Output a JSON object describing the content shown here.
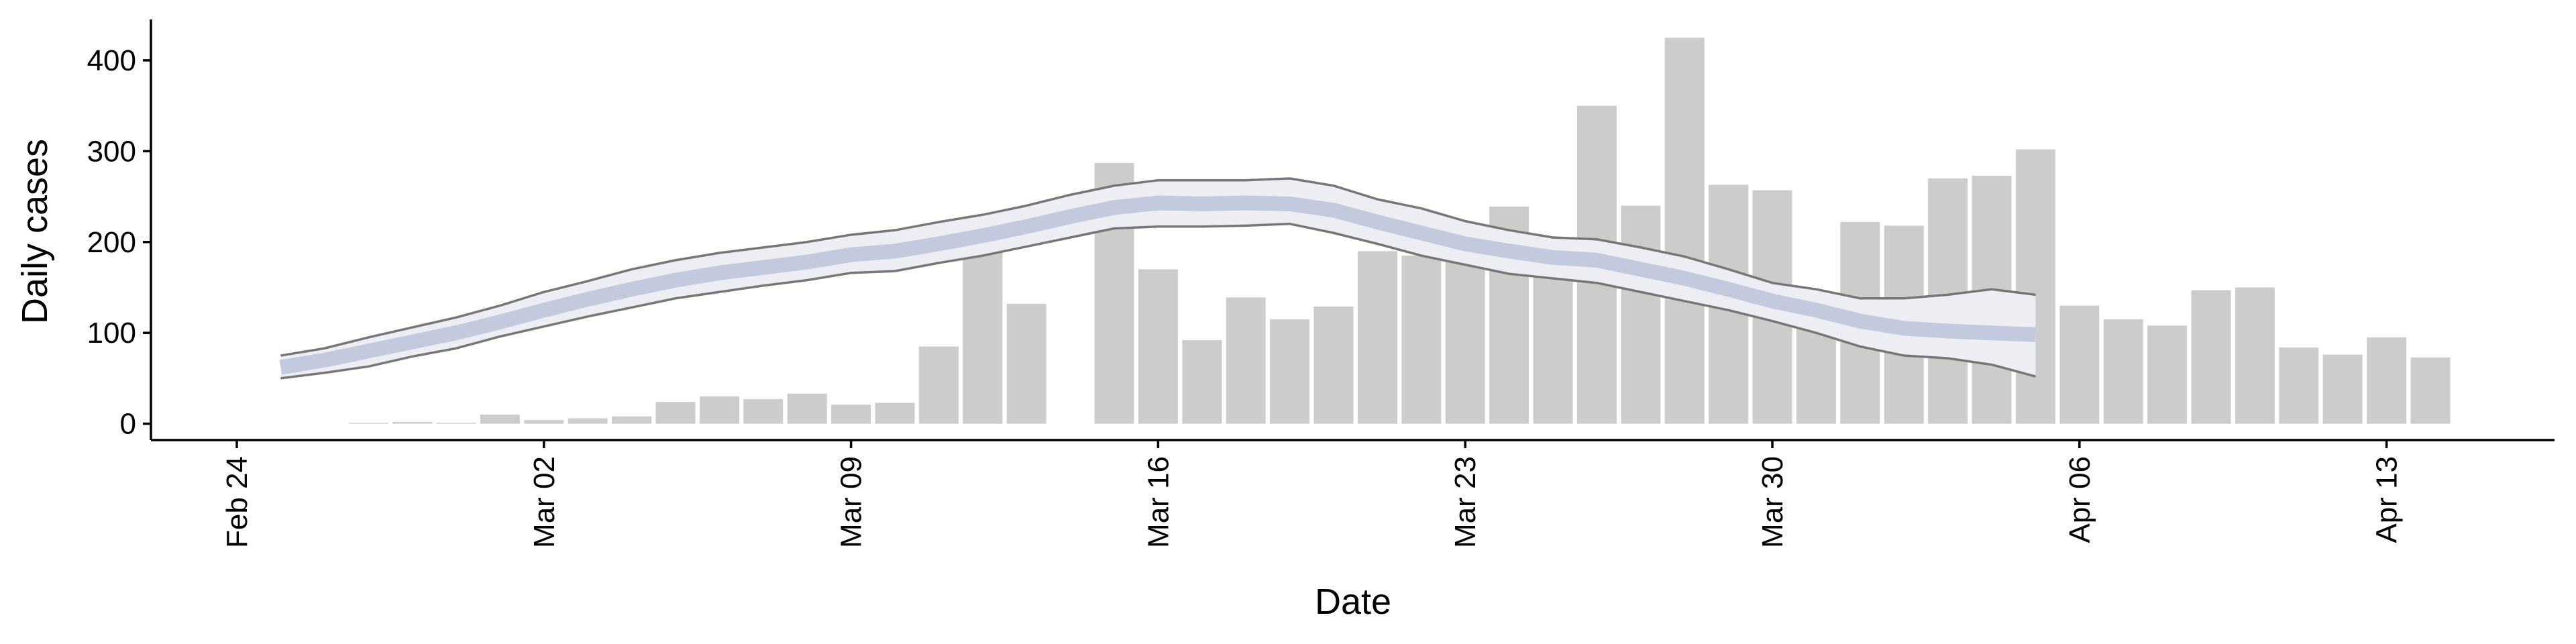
{
  "chart_data": {
    "type": "bar",
    "xlabel": "Date",
    "ylabel": "Daily cases",
    "categories": [
      "Feb 24",
      "Feb 25",
      "Feb 26",
      "Feb 27",
      "Feb 28",
      "Feb 29",
      "Mar 01",
      "Mar 02",
      "Mar 03",
      "Mar 04",
      "Mar 05",
      "Mar 06",
      "Mar 07",
      "Mar 08",
      "Mar 09",
      "Mar 10",
      "Mar 11",
      "Mar 12",
      "Mar 13",
      "Mar 14",
      "Mar 15",
      "Mar 16",
      "Mar 17",
      "Mar 18",
      "Mar 19",
      "Mar 20",
      "Mar 21",
      "Mar 22",
      "Mar 23",
      "Mar 24",
      "Mar 25",
      "Mar 26",
      "Mar 27",
      "Mar 28",
      "Mar 29",
      "Mar 30",
      "Mar 31",
      "Apr 01",
      "Apr 02",
      "Apr 03",
      "Apr 04",
      "Apr 05",
      "Apr 06",
      "Apr 07",
      "Apr 08",
      "Apr 09",
      "Apr 10",
      "Apr 11",
      "Apr 12",
      "Apr 13",
      "Apr 14"
    ],
    "values": [
      null,
      null,
      null,
      1,
      2,
      1,
      10,
      4,
      6,
      8,
      24,
      30,
      27,
      33,
      21,
      23,
      85,
      212,
      132,
      null,
      287,
      170,
      92,
      139,
      115,
      129,
      190,
      185,
      206,
      239,
      196,
      350,
      240,
      425,
      263,
      257,
      123,
      222,
      218,
      270,
      273,
      302,
      130,
      115,
      108,
      147,
      150,
      84,
      76,
      95,
      73
    ],
    "color": "#cccccc",
    "series": [
      {
        "color": "#777777",
        "values": [
          null,
          75,
          83,
          95,
          106,
          117,
          130,
          145,
          157,
          170,
          180,
          188,
          194,
          200,
          208,
          213,
          222,
          230,
          240,
          252,
          262,
          268,
          268,
          268,
          270,
          262,
          247,
          237,
          223,
          213,
          205,
          203,
          194,
          184,
          170,
          155,
          148,
          138,
          138,
          142,
          148,
          142,
          null,
          null,
          null,
          null,
          null,
          null,
          null,
          null,
          null
        ]
      },
      {
        "color": "#777777",
        "values": [
          null,
          50,
          56,
          63,
          74,
          83,
          96,
          107,
          118,
          128,
          138,
          145,
          152,
          158,
          166,
          168,
          177,
          185,
          195,
          205,
          215,
          217,
          217,
          218,
          220,
          210,
          198,
          185,
          175,
          165,
          160,
          155,
          145,
          135,
          125,
          113,
          100,
          85,
          75,
          72,
          65,
          52,
          null,
          null,
          null,
          null,
          null,
          null,
          null,
          null,
          null
        ]
      },
      {
        "color": "#bcc3d8",
        "values": [
          null,
          62,
          70,
          80,
          90,
          100,
          112,
          125,
          137,
          148,
          158,
          166,
          172,
          178,
          186,
          190,
          198,
          207,
          217,
          228,
          238,
          243,
          242,
          243,
          242,
          235,
          222,
          210,
          198,
          190,
          183,
          180,
          170,
          160,
          148,
          135,
          125,
          113,
          105,
          102,
          100,
          98,
          null,
          null,
          null,
          null,
          null,
          null,
          null,
          null,
          null
        ]
      }
    ],
    "band_color": "#eceef4",
    "ylim": [
      -18,
      445
    ],
    "yticks": [
      0,
      100,
      200,
      300,
      400
    ],
    "xticks": [
      "Feb 24",
      "Mar 02",
      "Mar 09",
      "Mar 16",
      "Mar 23",
      "Mar 30",
      "Apr 06",
      "Apr 13"
    ]
  }
}
